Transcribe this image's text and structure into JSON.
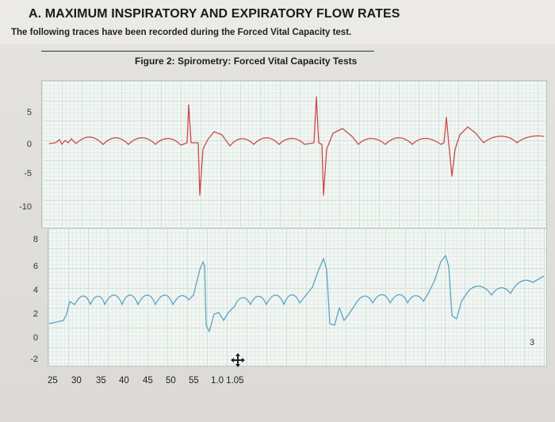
{
  "header": {
    "title": "A. MAXIMUM INSPIRATORY AND EXPIRATORY FLOW RATES",
    "subtitle": "The following traces have been recorded during the Forced Vital Capacity test."
  },
  "figure": {
    "title": "Figure 2: Spirometry: Forced Vital Capacity Tests",
    "top_panel": {
      "y_ticks": [
        "5",
        "0",
        "-5",
        "-10"
      ],
      "trace_color": "#c94a4a"
    },
    "bottom_panel": {
      "y_ticks": [
        "8",
        "6",
        "4",
        "2",
        "0",
        "-2"
      ],
      "trace_color": "#5ba3c4",
      "corner_label": "3"
    },
    "x_ticks": [
      "25",
      "30",
      "35",
      "40",
      "45",
      "50",
      "55",
      "1.0 1.05"
    ]
  },
  "icons": {
    "cursor": "move-cursor-icon"
  }
}
